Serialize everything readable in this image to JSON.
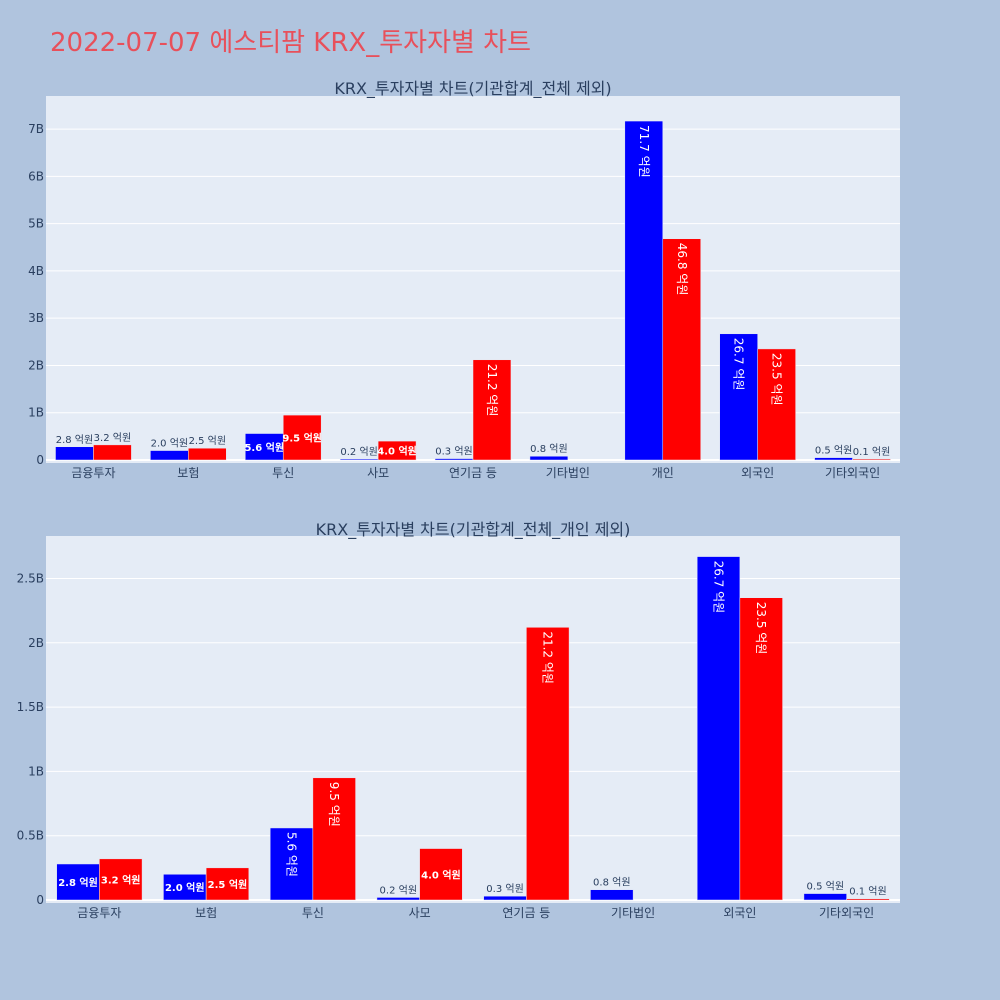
{
  "page": {
    "title": "2022-07-07 에스티팜 KRX_투자자별 차트"
  },
  "colors": {
    "background": "#b0c4de",
    "plot_bg": "#e5ecf6",
    "buy": "#0000ff",
    "sell": "#ff0000",
    "title": "#e8505b"
  },
  "chart_data": [
    {
      "type": "bar",
      "title": "KRX_투자자별 차트(기관합계_전체 제외)",
      "categories": [
        "금융투자",
        "보험",
        "투신",
        "사모",
        "연기금 등",
        "기타법인",
        "개인",
        "외국인",
        "기타외국인"
      ],
      "series": [
        {
          "color": "#0000ff",
          "values": [
            280000000,
            200000000,
            560000000,
            20000000,
            30000000,
            80000000,
            7170000000,
            2670000000,
            50000000
          ],
          "labels": [
            "2.8 억원",
            "2.0 억원",
            "5.6 억원",
            "0.2 억원",
            "0.3 억원",
            "0.8 억원",
            "71.7 억원",
            "26.7 억원",
            "0.5 억원"
          ]
        },
        {
          "color": "#ff0000",
          "values": [
            320000000,
            250000000,
            950000000,
            400000000,
            2120000000,
            0,
            4680000000,
            2350000000,
            10000000
          ],
          "labels": [
            "3.2 억원",
            "2.5 억원",
            "9.5 억원",
            "4.0 억원",
            "21.2 억원",
            "",
            "46.8 억원",
            "23.5 억원",
            "0.1 억원"
          ]
        }
      ],
      "ylim": [
        0,
        7700000000
      ],
      "yticks": [
        0,
        1000000000,
        2000000000,
        3000000000,
        4000000000,
        5000000000,
        6000000000,
        7000000000
      ],
      "yticklabels": [
        "0",
        "1B",
        "2B",
        "3B",
        "4B",
        "5B",
        "6B",
        "7B"
      ],
      "grid": true
    },
    {
      "type": "bar",
      "title": "KRX_투자자별 차트(기관합계_전체_개인 제외)",
      "categories": [
        "금융투자",
        "보험",
        "투신",
        "사모",
        "연기금 등",
        "기타법인",
        "외국인",
        "기타외국인"
      ],
      "series": [
        {
          "color": "#0000ff",
          "values": [
            280000000,
            200000000,
            560000000,
            20000000,
            30000000,
            80000000,
            2670000000,
            50000000
          ],
          "labels": [
            "2.8 억원",
            "2.0 억원",
            "5.6 억원",
            "0.2 억원",
            "0.3 억원",
            "0.8 억원",
            "26.7 억원",
            "0.5 억원"
          ]
        },
        {
          "color": "#ff0000",
          "values": [
            320000000,
            250000000,
            950000000,
            400000000,
            2120000000,
            0,
            2350000000,
            10000000
          ],
          "labels": [
            "3.2 억원",
            "2.5 억원",
            "9.5 억원",
            "4.0 억원",
            "21.2 억원",
            "",
            "23.5 억원",
            "0.1 억원"
          ]
        }
      ],
      "ylim": [
        0,
        2830000000
      ],
      "yticks": [
        0,
        500000000,
        1000000000,
        1500000000,
        2000000000,
        2500000000
      ],
      "yticklabels": [
        "0",
        "0.5B",
        "1B",
        "1.5B",
        "2B",
        "2.5B"
      ],
      "grid": true
    }
  ]
}
